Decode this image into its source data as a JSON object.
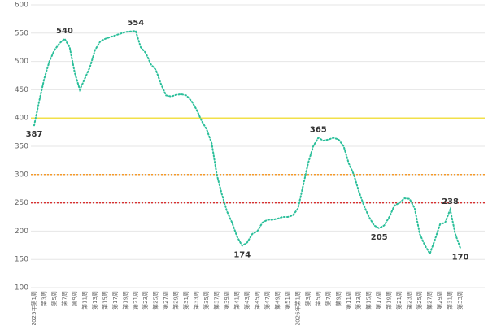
{
  "chart_data": {
    "type": "line",
    "categories": [
      "2025年第1周",
      null,
      "第3周",
      null,
      "第5周",
      null,
      "第7周",
      null,
      "第9周",
      null,
      "第11周",
      null,
      "第13周",
      null,
      "第15周",
      null,
      "第17周",
      null,
      "第19周",
      null,
      "第21周",
      null,
      "第23周",
      null,
      "第25周",
      null,
      "第27周",
      null,
      "第29周",
      null,
      "第31周",
      null,
      "第33周",
      null,
      "第35周",
      null,
      "第37周",
      null,
      "第39周",
      null,
      "第41周",
      null,
      "第43周",
      null,
      "第45周",
      null,
      "第47周",
      null,
      "第49周",
      null,
      "第51周",
      null,
      "2026年第1周",
      null,
      "第3周",
      null,
      "第5周",
      null,
      "第7周",
      null,
      "第9周",
      null,
      "第11周",
      null,
      "第13周",
      null,
      "第15周",
      null,
      "第17周",
      null,
      "第19周",
      null,
      "第21周",
      null,
      "第23周",
      null,
      "第25周",
      null,
      "第27周",
      null,
      "第29周",
      null,
      "第31周",
      null,
      "第33周"
    ],
    "series": [
      {
        "color": "#2bbf9a",
        "values": [
          387,
          430,
          470,
          500,
          520,
          532,
          540,
          525,
          480,
          450,
          470,
          490,
          520,
          535,
          540,
          543,
          546,
          549,
          552,
          553,
          554,
          525,
          515,
          495,
          485,
          460,
          440,
          438,
          441,
          442,
          440,
          430,
          415,
          395,
          380,
          355,
          300,
          265,
          235,
          215,
          190,
          174,
          180,
          195,
          200,
          215,
          220,
          220,
          222,
          225,
          225,
          228,
          240,
          280,
          320,
          350,
          365,
          360,
          362,
          365,
          362,
          350,
          320,
          300,
          270,
          245,
          225,
          210,
          205,
          210,
          225,
          245,
          250,
          258,
          257,
          240,
          195,
          175,
          160,
          185,
          212,
          215,
          238,
          195,
          170
        ],
        "value_labels": [
          "387",
          null,
          null,
          null,
          null,
          null,
          "540",
          null,
          null,
          null,
          null,
          null,
          null,
          null,
          null,
          null,
          null,
          null,
          null,
          null,
          "554",
          null,
          null,
          null,
          null,
          null,
          null,
          null,
          null,
          null,
          null,
          null,
          null,
          null,
          null,
          null,
          null,
          null,
          null,
          null,
          null,
          "174",
          null,
          null,
          null,
          null,
          null,
          null,
          null,
          null,
          null,
          null,
          null,
          null,
          null,
          null,
          "365",
          null,
          null,
          null,
          null,
          null,
          null,
          null,
          null,
          null,
          null,
          null,
          "205",
          null,
          null,
          null,
          null,
          null,
          null,
          null,
          null,
          null,
          null,
          null,
          null,
          null,
          "238",
          null,
          "170"
        ]
      }
    ],
    "reference_lines": [
      {
        "value": 400,
        "color": "#f2e04a"
      },
      {
        "value": 300,
        "color": "#f59a2a"
      },
      {
        "value": 250,
        "color": "#d83030"
      }
    ],
    "ylim": [
      100,
      600
    ],
    "yticks": [
      100,
      150,
      200,
      250,
      300,
      350,
      400,
      450,
      500,
      550,
      600
    ],
    "grid": true
  }
}
